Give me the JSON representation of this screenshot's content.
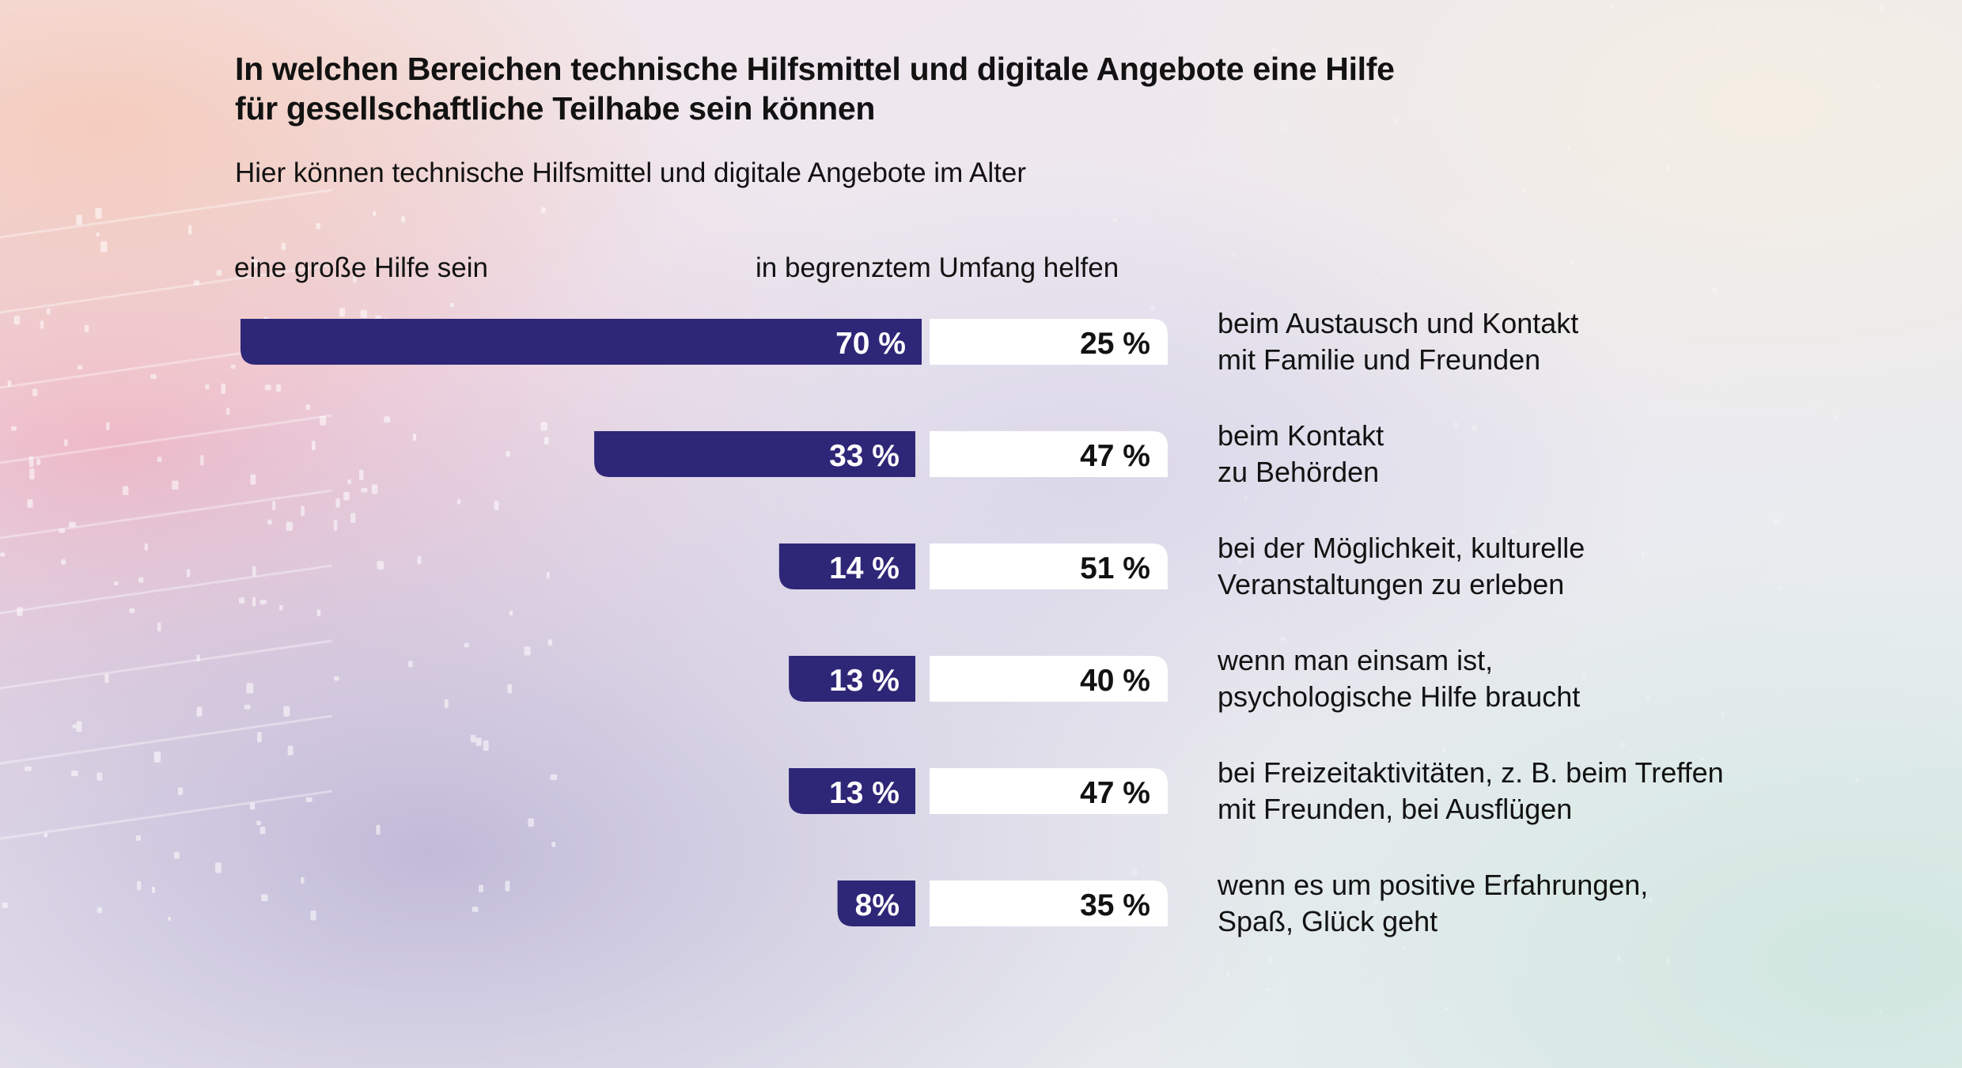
{
  "title_lines": [
    "In welchen Bereichen technische Hilfsmittel und digitale Angebote eine Hilfe",
    "für gesellschaftliche Teilhabe sein können"
  ],
  "subtitle": "Hier können technische Hilfsmittel und digitale Angebote im Alter",
  "chart_data": {
    "type": "bar",
    "orientation": "horizontal-diverging",
    "title": "In welchen Bereichen technische Hilfsmittel und digitale Angebote eine Hilfe für gesellschaftliche Teilhabe sein können",
    "subtitle": "Hier können technische Hilfsmittel und digitale Angebote im Alter",
    "categories": [
      [
        "beim Austausch und Kontakt",
        "mit Familie und Freunden"
      ],
      [
        "beim Kontakt",
        "zu Behörden"
      ],
      [
        "bei der Möglichkeit, kulturelle",
        "Veranstaltungen zu erleben"
      ],
      [
        "wenn man einsam ist,",
        "psychologische Hilfe braucht"
      ],
      [
        "bei Freizeitaktivitäten, z. B. beim Treffen",
        "mit Freunden, bei Ausflügen"
      ],
      [
        "wenn es um positive Erfahrungen,",
        "Spaß, Glück geht"
      ]
    ],
    "series": [
      {
        "name": "eine große Hilfe sein",
        "color": "#2e2677",
        "values": [
          70,
          33,
          14,
          13,
          13,
          8
        ],
        "labels": [
          "70 %",
          "33 %",
          "14 %",
          "13 %",
          "13 %",
          "8%"
        ]
      },
      {
        "name": "in begrenztem Umfang helfen",
        "color": "#ffffff",
        "values": [
          25,
          47,
          51,
          40,
          47,
          35
        ],
        "labels": [
          "25 %",
          "47 %",
          "51 %",
          "40 %",
          "47 %",
          "35 %"
        ]
      }
    ],
    "unit": "%"
  }
}
